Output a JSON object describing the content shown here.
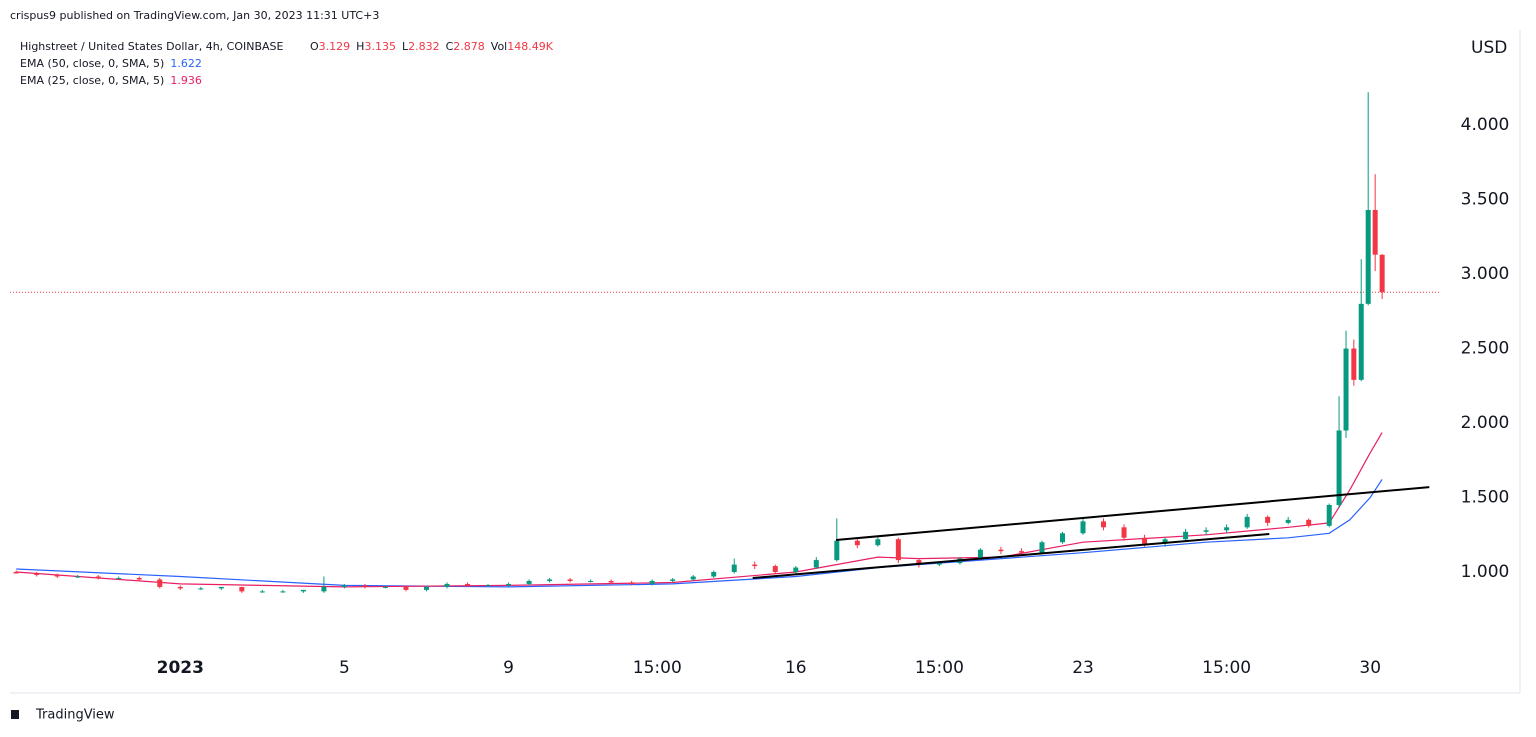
{
  "header": "crispus9 published on TradingView.com, Jan 30, 2023 11:31 UTC+3",
  "footer": "TradingView",
  "legend": {
    "symbol": "Highstreet / United States Dollar, 4h, COINBASE",
    "ohlc": [
      {
        "label": "O",
        "value": "3.129"
      },
      {
        "label": "H",
        "value": "3.135"
      },
      {
        "label": "L",
        "value": "2.832"
      },
      {
        "label": "C",
        "value": "2.878"
      },
      {
        "label": "Vol",
        "value": "148.49K"
      }
    ]
  },
  "chart_data": {
    "type": "candlestick",
    "y_unit": "USD",
    "x": [
      -4,
      -3.5,
      -3,
      -2.5,
      -2,
      -1.5,
      -1,
      -0.5,
      0,
      0.5,
      1,
      1.5,
      2,
      2.5,
      3,
      3.5,
      4,
      4.5,
      5,
      5.5,
      6,
      6.5,
      7,
      7.5,
      8,
      8.5,
      9,
      9.5,
      10,
      10.5,
      11,
      11.5,
      12,
      12.5,
      13,
      13.5,
      14,
      14.5,
      15,
      15.5,
      16,
      16.5,
      17,
      17.5,
      18,
      18.5,
      19,
      19.5,
      20,
      20.5,
      21,
      21.5,
      22,
      22.5,
      23,
      23.5,
      24,
      24.5,
      25,
      25.5,
      26,
      26.5,
      27,
      27.5,
      28,
      28.24,
      28.41,
      28.6,
      28.78,
      28.95,
      29.12,
      29.29
    ],
    "open": [
      1.0,
      0.99,
      0.98,
      0.97,
      0.97,
      0.96,
      0.96,
      0.95,
      0.9,
      0.89,
      0.89,
      0.9,
      0.87,
      0.87,
      0.87,
      0.87,
      0.9,
      0.91,
      0.9,
      0.9,
      0.88,
      0.9,
      0.92,
      0.91,
      0.91,
      0.92,
      0.94,
      0.95,
      0.94,
      0.94,
      0.93,
      0.92,
      0.94,
      0.95,
      0.97,
      1.0,
      1.05,
      1.04,
      1.0,
      1.03,
      1.08,
      1.21,
      1.18,
      1.22,
      1.08,
      1.05,
      1.06,
      1.09,
      1.15,
      1.14,
      1.13,
      1.2,
      1.26,
      1.34,
      1.3,
      1.23,
      1.19,
      1.22,
      1.27,
      1.28,
      1.3,
      1.37,
      1.33,
      1.35,
      1.31,
      1.45,
      1.95,
      2.5,
      2.29,
      2.8,
      3.43,
      3.129
    ],
    "high": [
      1.01,
      1.0,
      0.99,
      0.98,
      0.98,
      0.97,
      0.97,
      0.96,
      0.91,
      0.9,
      0.9,
      0.9,
      0.88,
      0.88,
      0.88,
      0.97,
      0.92,
      0.92,
      0.91,
      0.91,
      0.91,
      0.93,
      0.93,
      0.92,
      0.93,
      0.95,
      0.96,
      0.96,
      0.95,
      0.95,
      0.94,
      0.95,
      0.96,
      0.98,
      1.01,
      1.09,
      1.07,
      1.05,
      1.04,
      1.1,
      1.36,
      1.23,
      1.24,
      1.23,
      1.09,
      1.07,
      1.1,
      1.16,
      1.17,
      1.16,
      1.21,
      1.27,
      1.37,
      1.36,
      1.32,
      1.25,
      1.23,
      1.29,
      1.3,
      1.32,
      1.39,
      1.38,
      1.37,
      1.36,
      1.46,
      2.18,
      2.62,
      2.56,
      3.1,
      4.22,
      3.67,
      3.135
    ],
    "low": [
      0.99,
      0.97,
      0.96,
      0.96,
      0.95,
      0.95,
      0.94,
      0.89,
      0.88,
      0.88,
      0.88,
      0.86,
      0.86,
      0.86,
      0.86,
      0.86,
      0.89,
      0.89,
      0.89,
      0.87,
      0.87,
      0.89,
      0.9,
      0.9,
      0.9,
      0.91,
      0.93,
      0.93,
      0.93,
      0.92,
      0.91,
      0.91,
      0.93,
      0.94,
      0.96,
      0.99,
      1.02,
      0.99,
      0.99,
      1.02,
      1.07,
      1.16,
      1.17,
      1.06,
      1.03,
      1.04,
      1.05,
      1.08,
      1.12,
      1.12,
      1.12,
      1.19,
      1.25,
      1.28,
      1.21,
      1.17,
      1.17,
      1.21,
      1.25,
      1.26,
      1.29,
      1.31,
      1.32,
      1.3,
      1.3,
      1.43,
      1.9,
      2.25,
      2.28,
      2.79,
      3.02,
      2.832
    ],
    "close": [
      0.99,
      0.98,
      0.97,
      0.97,
      0.96,
      0.96,
      0.95,
      0.9,
      0.89,
      0.89,
      0.9,
      0.87,
      0.87,
      0.87,
      0.88,
      0.9,
      0.91,
      0.9,
      0.9,
      0.88,
      0.9,
      0.92,
      0.91,
      0.91,
      0.92,
      0.94,
      0.95,
      0.94,
      0.94,
      0.93,
      0.92,
      0.94,
      0.95,
      0.97,
      1.0,
      1.05,
      1.04,
      1.0,
      1.03,
      1.08,
      1.21,
      1.18,
      1.22,
      1.08,
      1.05,
      1.06,
      1.09,
      1.15,
      1.14,
      1.13,
      1.2,
      1.26,
      1.34,
      1.3,
      1.23,
      1.19,
      1.22,
      1.27,
      1.28,
      1.3,
      1.37,
      1.33,
      1.35,
      1.31,
      1.45,
      1.95,
      2.5,
      2.29,
      2.8,
      3.43,
      3.13,
      2.878
    ],
    "up_color": "#089981",
    "down_color": "#f23645",
    "lines": [
      {
        "name": "EMA (50, close, 0, SMA, 5)",
        "value_label": "1.622",
        "color": "#2962ff",
        "x": [
          -4,
          0,
          4,
          8,
          12,
          15,
          17,
          19,
          22,
          25,
          27,
          28,
          28.5,
          29,
          29.29
        ],
        "values": [
          1.02,
          0.97,
          0.91,
          0.9,
          0.92,
          0.97,
          1.03,
          1.07,
          1.13,
          1.2,
          1.23,
          1.26,
          1.35,
          1.5,
          1.622
        ]
      },
      {
        "name": "EMA (25, close, 0, SMA, 5)",
        "value_label": "1.936",
        "color": "#e91e63",
        "x": [
          -4,
          0,
          4,
          8,
          12,
          15,
          17,
          18,
          20,
          22,
          25,
          27,
          28,
          28.5,
          29,
          29.29
        ],
        "values": [
          1.0,
          0.92,
          0.9,
          0.91,
          0.93,
          1.0,
          1.1,
          1.09,
          1.1,
          1.2,
          1.25,
          1.3,
          1.33,
          1.55,
          1.8,
          1.936
        ]
      }
    ],
    "trendlines": [
      {
        "x": [
          15.98,
          30.44
        ],
        "values": [
          1.215,
          1.57
        ],
        "color": "#000000"
      },
      {
        "x": [
          13.95,
          26.54
        ],
        "values": [
          0.96,
          1.255
        ],
        "color": "#000000"
      }
    ],
    "last_price": 2.878,
    "xlim": [
      -4.15,
      30.7
    ],
    "ylim": [
      0.188,
      4.638
    ],
    "xticks": [
      {
        "value": 0,
        "label": "2023"
      },
      {
        "value": 4,
        "label": "5"
      },
      {
        "value": 8,
        "label": "9"
      },
      {
        "value": 11.625,
        "label": "15:00"
      },
      {
        "value": 15,
        "label": "16"
      },
      {
        "value": 18.5,
        "label": "15:00"
      },
      {
        "value": 22,
        "label": "23"
      },
      {
        "value": 25.5,
        "label": "15:00"
      },
      {
        "value": 29,
        "label": "30"
      }
    ],
    "yticks": [
      {
        "value": 1,
        "label": "1.000"
      },
      {
        "value": 1.5,
        "label": "1.500"
      },
      {
        "value": 2,
        "label": "2.000"
      },
      {
        "value": 2.5,
        "label": "2.500"
      },
      {
        "value": 3,
        "label": "3.000"
      },
      {
        "value": 3.5,
        "label": "3.500"
      },
      {
        "value": 4,
        "label": "4.000"
      }
    ]
  }
}
